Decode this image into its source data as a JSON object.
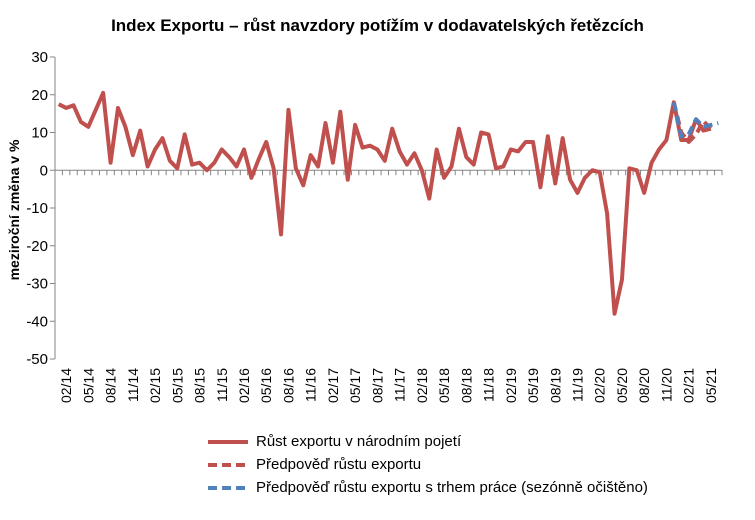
{
  "chart_data": {
    "type": "line",
    "title": "Index Exportu – růst navzdory potížím v dodavatelských řetězcích",
    "ylabel": "meziroční změna v %",
    "xlabel": "",
    "ylim": [
      -50,
      30
    ],
    "yticks": [
      30,
      20,
      10,
      0,
      -10,
      -20,
      -30,
      -40,
      -50
    ],
    "xtick_labels": [
      "02/14",
      "05/14",
      "08/14",
      "11/14",
      "02/15",
      "05/15",
      "08/15",
      "11/15",
      "02/16",
      "05/16",
      "08/16",
      "11/16",
      "02/17",
      "05/17",
      "08/17",
      "11/17",
      "02/18",
      "05/18",
      "08/18",
      "11/18",
      "02/19",
      "05/19",
      "08/19",
      "11/19",
      "02/20",
      "05/20",
      "08/20",
      "11/20",
      "02/21",
      "05/21"
    ],
    "start_month": "01/14",
    "grid": false,
    "legend_position": "bottom",
    "series": [
      {
        "name": "Růst exportu v národním pojetí",
        "color": "#c0504d",
        "style": "solid",
        "start_index": 0,
        "values": [
          17.5,
          16.5,
          17.2,
          12.8,
          11.5,
          16.0,
          20.5,
          2.0,
          16.5,
          11.5,
          4.0,
          10.5,
          1.0,
          5.5,
          8.5,
          2.5,
          0.5,
          9.5,
          1.5,
          2.0,
          0.0,
          2.0,
          5.5,
          3.5,
          1.0,
          5.5,
          -2.0,
          3.0,
          7.5,
          0.5,
          -17.0,
          16.0,
          0.5,
          -4.0,
          4.0,
          1.0,
          12.5,
          2.0,
          15.5,
          -2.5,
          12.0,
          6.0,
          6.5,
          5.5,
          2.5,
          11.0,
          5.0,
          1.5,
          4.5,
          0.0,
          -7.5,
          5.5,
          -2.0,
          1.0,
          11.0,
          3.5,
          1.5,
          10.0,
          9.5,
          0.5,
          1.0,
          5.5,
          5.0,
          7.5,
          7.5,
          -4.5,
          9.0,
          -3.5,
          8.5,
          -2.5,
          -6.0,
          -2.0,
          0.0,
          -0.5,
          -11.5,
          -38.0,
          -29.0,
          0.5,
          0.0,
          -6.0,
          2.0,
          5.5,
          8.0,
          18.0,
          8.0,
          8.0,
          13.5,
          10.5,
          11.0
        ]
      },
      {
        "name": "Předpověď růstu exportu",
        "color": "#c0504d",
        "style": "dashed",
        "start_index": 83,
        "values": [
          18.0,
          10.0,
          7.5,
          9.5,
          13.0,
          11.0
        ]
      },
      {
        "name": "Předpověď růstu exportu s trhem práce (sezónně očištěno)",
        "color": "#4f81bd",
        "style": "dashed",
        "start_index": 83,
        "values": [
          18.0,
          9.0,
          9.5,
          13.5,
          11.5,
          12.0,
          12.5
        ]
      }
    ]
  }
}
